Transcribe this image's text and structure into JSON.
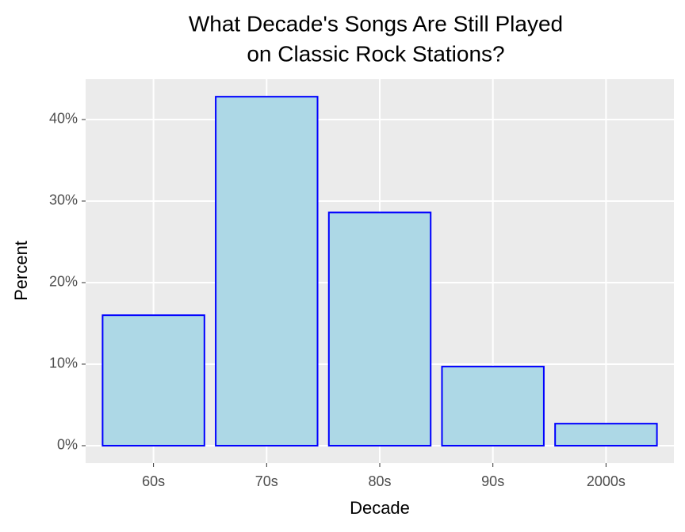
{
  "chart_data": {
    "type": "bar",
    "title": [
      "What Decade's Songs Are Still Played",
      "on Classic Rock Stations?"
    ],
    "x_label": "Decade",
    "y_label": "Percent",
    "categories": [
      "60s",
      "70s",
      "80s",
      "90s",
      "2000s"
    ],
    "values": [
      16.0,
      42.8,
      28.6,
      9.7,
      2.7
    ],
    "color": "#add8e6",
    "edge_color": "#0000ff",
    "ylim": [
      -2.14,
      44.95
    ],
    "yticks": [
      {
        "value": 0,
        "label": "0%"
      },
      {
        "value": 10,
        "label": "10%"
      },
      {
        "value": 20,
        "label": "20%"
      },
      {
        "value": 30,
        "label": "30%"
      },
      {
        "value": 40,
        "label": "40%"
      }
    ],
    "grid": true
  }
}
